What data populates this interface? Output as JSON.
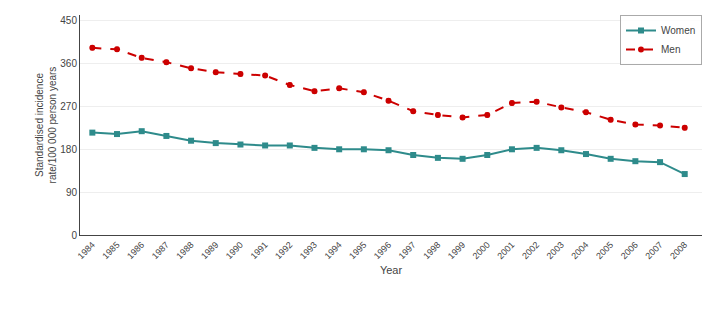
{
  "chart_data": {
    "type": "line",
    "x": [
      1984,
      1985,
      1986,
      1987,
      1988,
      1989,
      1990,
      1991,
      1992,
      1993,
      1994,
      1995,
      1996,
      1997,
      1998,
      1999,
      2000,
      2001,
      2002,
      2003,
      2004,
      2005,
      2006,
      2007,
      2008
    ],
    "series": [
      {
        "name": "Women",
        "color": "#2e8b8b",
        "marker": "square",
        "line_style": "solid",
        "values": [
          215,
          212,
          218,
          208,
          198,
          193,
          190,
          188,
          188,
          183,
          180,
          180,
          178,
          168,
          162,
          160,
          168,
          180,
          183,
          178,
          170,
          160,
          155,
          153,
          128
        ],
        "errors": [
          3,
          3,
          3,
          3,
          3,
          3,
          3,
          3,
          3,
          3,
          3,
          3,
          3,
          3,
          3,
          3,
          3,
          3,
          3,
          3,
          3,
          3,
          3,
          3,
          3
        ]
      },
      {
        "name": "Men",
        "color": "#cc0000",
        "marker": "circle",
        "line_style": "dashed",
        "values": [
          393,
          390,
          372,
          363,
          350,
          342,
          338,
          335,
          315,
          302,
          308,
          300,
          282,
          260,
          252,
          247,
          252,
          277,
          280,
          268,
          258,
          242,
          232,
          230,
          225
        ],
        "errors": [
          4,
          4,
          4,
          4,
          4,
          4,
          4,
          4,
          4,
          4,
          4,
          4,
          4,
          4,
          4,
          4,
          4,
          4,
          4,
          4,
          4,
          4,
          4,
          4,
          4
        ]
      }
    ],
    "xlabel": "Year",
    "ylabel": "Standardised incidence\nrate/100 000 person years",
    "xlim": [
      1983.5,
      2008.7
    ],
    "xticks": [
      1984,
      1985,
      1986,
      1987,
      1988,
      1989,
      1990,
      1991,
      1992,
      1993,
      1994,
      1995,
      1996,
      1997,
      1998,
      1999,
      2000,
      2001,
      2002,
      2003,
      2004,
      2005,
      2006,
      2007,
      2008
    ],
    "ylim": [
      0,
      462
    ],
    "yticks": [
      0,
      90,
      180,
      270,
      360,
      450
    ],
    "grid": true,
    "legend": "upper right"
  }
}
